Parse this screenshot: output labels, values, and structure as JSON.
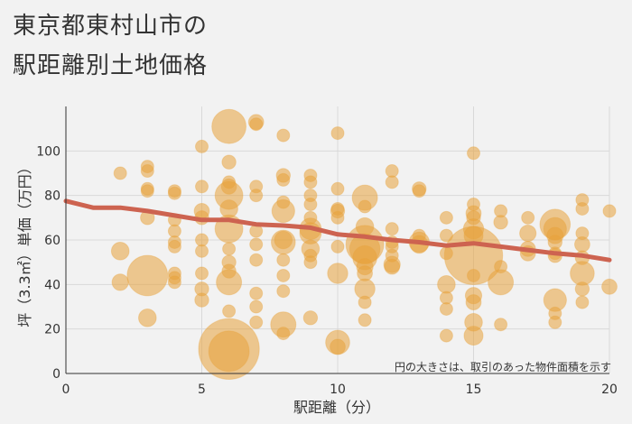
{
  "title": {
    "line1": "東京都東村山市の",
    "line2": "駅距離別土地価格"
  },
  "colors": {
    "background": "#f2f2f2",
    "bubble": "#e8a33c",
    "trend": "#cd6350",
    "grid": "#d9d9d9",
    "axis": "#333333"
  },
  "chart_data": {
    "type": "scatter",
    "xlabel": "駅距離（分）",
    "ylabel": "坪（3.3㎡）単価（万円）",
    "xlim": [
      0,
      20
    ],
    "ylim": [
      0,
      120
    ],
    "xticks": [
      0,
      5,
      10,
      15,
      20
    ],
    "yticks": [
      0,
      20,
      40,
      60,
      80,
      100
    ],
    "note": "円の大きさは、取引のあった物件面積を示す",
    "trend": {
      "x": [
        0,
        1,
        2,
        3,
        4,
        5,
        6,
        7,
        8,
        9,
        10,
        11,
        12,
        13,
        14,
        15,
        16,
        17,
        18,
        19,
        20
      ],
      "y": [
        77.5,
        74.5,
        74.5,
        73,
        71,
        69,
        69,
        67,
        66.5,
        65.5,
        62.5,
        61.5,
        60,
        59,
        57.5,
        58.5,
        57,
        55.5,
        54,
        53,
        51
      ]
    },
    "points": [
      {
        "x": 2,
        "y": 90,
        "s": 1
      },
      {
        "x": 2,
        "y": 55,
        "s": 1.4
      },
      {
        "x": 2,
        "y": 41,
        "s": 1.3
      },
      {
        "x": 3,
        "y": 93,
        "s": 1
      },
      {
        "x": 3,
        "y": 91,
        "s": 1
      },
      {
        "x": 3,
        "y": 83,
        "s": 1
      },
      {
        "x": 3,
        "y": 82,
        "s": 1
      },
      {
        "x": 3,
        "y": 70,
        "s": 1.1
      },
      {
        "x": 3,
        "y": 44,
        "s": 3.2
      },
      {
        "x": 3,
        "y": 25,
        "s": 1.4
      },
      {
        "x": 4,
        "y": 82,
        "s": 1
      },
      {
        "x": 4,
        "y": 81,
        "s": 1
      },
      {
        "x": 4,
        "y": 69,
        "s": 1
      },
      {
        "x": 4,
        "y": 64,
        "s": 1
      },
      {
        "x": 4,
        "y": 59,
        "s": 1
      },
      {
        "x": 4,
        "y": 57,
        "s": 1
      },
      {
        "x": 4,
        "y": 45,
        "s": 1
      },
      {
        "x": 4,
        "y": 43,
        "s": 1
      },
      {
        "x": 4,
        "y": 41,
        "s": 1
      },
      {
        "x": 5,
        "y": 102,
        "s": 1
      },
      {
        "x": 5,
        "y": 84,
        "s": 1
      },
      {
        "x": 5,
        "y": 73,
        "s": 1.2
      },
      {
        "x": 5,
        "y": 70,
        "s": 1.1
      },
      {
        "x": 5,
        "y": 60,
        "s": 1
      },
      {
        "x": 5,
        "y": 55,
        "s": 1
      },
      {
        "x": 5,
        "y": 45,
        "s": 1
      },
      {
        "x": 5,
        "y": 38,
        "s": 1.1
      },
      {
        "x": 5,
        "y": 33,
        "s": 1.1
      },
      {
        "x": 6,
        "y": 111,
        "s": 2.7
      },
      {
        "x": 6,
        "y": 95,
        "s": 1.1
      },
      {
        "x": 6,
        "y": 86,
        "s": 1
      },
      {
        "x": 6,
        "y": 84,
        "s": 1.2
      },
      {
        "x": 6,
        "y": 80,
        "s": 2.2
      },
      {
        "x": 6,
        "y": 74,
        "s": 1.4
      },
      {
        "x": 6,
        "y": 65,
        "s": 2.2
      },
      {
        "x": 6,
        "y": 56,
        "s": 1
      },
      {
        "x": 6,
        "y": 50,
        "s": 1.1
      },
      {
        "x": 6,
        "y": 46,
        "s": 1.1
      },
      {
        "x": 6,
        "y": 41,
        "s": 2
      },
      {
        "x": 6,
        "y": 28,
        "s": 1
      },
      {
        "x": 6,
        "y": 11,
        "s": 4.8
      },
      {
        "x": 6,
        "y": 10,
        "s": 3.2
      },
      {
        "x": 7,
        "y": 113,
        "s": 1.2
      },
      {
        "x": 7,
        "y": 112,
        "s": 1
      },
      {
        "x": 7,
        "y": 84,
        "s": 1
      },
      {
        "x": 7,
        "y": 80,
        "s": 1
      },
      {
        "x": 7,
        "y": 64,
        "s": 1
      },
      {
        "x": 7,
        "y": 58,
        "s": 1
      },
      {
        "x": 7,
        "y": 51,
        "s": 1
      },
      {
        "x": 7,
        "y": 36,
        "s": 1
      },
      {
        "x": 7,
        "y": 30,
        "s": 1
      },
      {
        "x": 7,
        "y": 23,
        "s": 1
      },
      {
        "x": 8,
        "y": 107,
        "s": 1
      },
      {
        "x": 8,
        "y": 89,
        "s": 1.1
      },
      {
        "x": 8,
        "y": 87,
        "s": 1
      },
      {
        "x": 8,
        "y": 77,
        "s": 1
      },
      {
        "x": 8,
        "y": 73,
        "s": 1.8
      },
      {
        "x": 8,
        "y": 60,
        "s": 1.4
      },
      {
        "x": 8,
        "y": 59,
        "s": 1.9
      },
      {
        "x": 8,
        "y": 51,
        "s": 1
      },
      {
        "x": 8,
        "y": 44,
        "s": 1
      },
      {
        "x": 8,
        "y": 37,
        "s": 1
      },
      {
        "x": 8,
        "y": 22,
        "s": 2
      },
      {
        "x": 8,
        "y": 18,
        "s": 1
      },
      {
        "x": 9,
        "y": 89,
        "s": 1
      },
      {
        "x": 9,
        "y": 86,
        "s": 1
      },
      {
        "x": 9,
        "y": 80,
        "s": 1
      },
      {
        "x": 9,
        "y": 76,
        "s": 1
      },
      {
        "x": 9,
        "y": 70,
        "s": 1
      },
      {
        "x": 9,
        "y": 65,
        "s": 1.7
      },
      {
        "x": 9,
        "y": 63,
        "s": 1.7
      },
      {
        "x": 9,
        "y": 56,
        "s": 1.4
      },
      {
        "x": 9,
        "y": 53,
        "s": 1
      },
      {
        "x": 9,
        "y": 50,
        "s": 1
      },
      {
        "x": 9,
        "y": 25,
        "s": 1.1
      },
      {
        "x": 10,
        "y": 108,
        "s": 1
      },
      {
        "x": 10,
        "y": 83,
        "s": 1
      },
      {
        "x": 10,
        "y": 74,
        "s": 1
      },
      {
        "x": 10,
        "y": 73,
        "s": 1.1
      },
      {
        "x": 10,
        "y": 70,
        "s": 1
      },
      {
        "x": 10,
        "y": 57,
        "s": 1
      },
      {
        "x": 10,
        "y": 45,
        "s": 1.6
      },
      {
        "x": 10,
        "y": 14,
        "s": 1.9
      },
      {
        "x": 10,
        "y": 12,
        "s": 1.2
      },
      {
        "x": 11,
        "y": 79,
        "s": 2
      },
      {
        "x": 11,
        "y": 75,
        "s": 1
      },
      {
        "x": 11,
        "y": 66,
        "s": 1.4
      },
      {
        "x": 11,
        "y": 58,
        "s": 3
      },
      {
        "x": 11,
        "y": 56,
        "s": 2.4
      },
      {
        "x": 11,
        "y": 52,
        "s": 1.9
      },
      {
        "x": 11,
        "y": 48,
        "s": 1.3
      },
      {
        "x": 11,
        "y": 45,
        "s": 1.2
      },
      {
        "x": 11,
        "y": 38,
        "s": 1.6
      },
      {
        "x": 11,
        "y": 32,
        "s": 1
      },
      {
        "x": 11,
        "y": 24,
        "s": 1
      },
      {
        "x": 12,
        "y": 91,
        "s": 1
      },
      {
        "x": 12,
        "y": 86,
        "s": 1
      },
      {
        "x": 12,
        "y": 65,
        "s": 1
      },
      {
        "x": 12,
        "y": 59,
        "s": 1
      },
      {
        "x": 12,
        "y": 57,
        "s": 1
      },
      {
        "x": 12,
        "y": 53,
        "s": 1
      },
      {
        "x": 12,
        "y": 49,
        "s": 1.3
      },
      {
        "x": 12,
        "y": 48,
        "s": 1.2
      },
      {
        "x": 13,
        "y": 83,
        "s": 1.1
      },
      {
        "x": 13,
        "y": 82,
        "s": 1
      },
      {
        "x": 13,
        "y": 62,
        "s": 1
      },
      {
        "x": 13,
        "y": 59,
        "s": 1.6
      },
      {
        "x": 13,
        "y": 58,
        "s": 1.4
      },
      {
        "x": 14,
        "y": 70,
        "s": 1
      },
      {
        "x": 14,
        "y": 62,
        "s": 1
      },
      {
        "x": 14,
        "y": 54,
        "s": 1
      },
      {
        "x": 14,
        "y": 40,
        "s": 1.4
      },
      {
        "x": 14,
        "y": 34,
        "s": 1
      },
      {
        "x": 14,
        "y": 29,
        "s": 1
      },
      {
        "x": 14,
        "y": 17,
        "s": 1
      },
      {
        "x": 15,
        "y": 99,
        "s": 1
      },
      {
        "x": 15,
        "y": 76,
        "s": 1
      },
      {
        "x": 15,
        "y": 72,
        "s": 1.2
      },
      {
        "x": 15,
        "y": 70,
        "s": 1.1
      },
      {
        "x": 15,
        "y": 65,
        "s": 1.6
      },
      {
        "x": 15,
        "y": 62,
        "s": 1.5
      },
      {
        "x": 15,
        "y": 53,
        "s": 4.6
      },
      {
        "x": 15,
        "y": 44,
        "s": 1
      },
      {
        "x": 15,
        "y": 35,
        "s": 1.3
      },
      {
        "x": 15,
        "y": 32,
        "s": 1.2
      },
      {
        "x": 15,
        "y": 23,
        "s": 1.4
      },
      {
        "x": 15,
        "y": 17,
        "s": 1.5
      },
      {
        "x": 16,
        "y": 73,
        "s": 1
      },
      {
        "x": 16,
        "y": 68,
        "s": 1.1
      },
      {
        "x": 16,
        "y": 48,
        "s": 1
      },
      {
        "x": 16,
        "y": 41,
        "s": 2
      },
      {
        "x": 16,
        "y": 22,
        "s": 1
      },
      {
        "x": 17,
        "y": 70,
        "s": 1
      },
      {
        "x": 17,
        "y": 63,
        "s": 1.3
      },
      {
        "x": 17,
        "y": 56,
        "s": 1.2
      },
      {
        "x": 17,
        "y": 54,
        "s": 1.2
      },
      {
        "x": 18,
        "y": 67,
        "s": 2.4
      },
      {
        "x": 18,
        "y": 65,
        "s": 1.8
      },
      {
        "x": 18,
        "y": 62,
        "s": 1.3
      },
      {
        "x": 18,
        "y": 59,
        "s": 1.1
      },
      {
        "x": 18,
        "y": 54,
        "s": 1
      },
      {
        "x": 18,
        "y": 53,
        "s": 1.1
      },
      {
        "x": 18,
        "y": 33,
        "s": 1.8
      },
      {
        "x": 18,
        "y": 27,
        "s": 1
      },
      {
        "x": 18,
        "y": 23,
        "s": 1
      },
      {
        "x": 19,
        "y": 78,
        "s": 1
      },
      {
        "x": 19,
        "y": 74,
        "s": 1
      },
      {
        "x": 19,
        "y": 63,
        "s": 1
      },
      {
        "x": 19,
        "y": 58,
        "s": 1.2
      },
      {
        "x": 19,
        "y": 52,
        "s": 1.1
      },
      {
        "x": 19,
        "y": 45,
        "s": 1.9
      },
      {
        "x": 19,
        "y": 38,
        "s": 1.1
      },
      {
        "x": 19,
        "y": 32,
        "s": 1
      },
      {
        "x": 20,
        "y": 73,
        "s": 1
      },
      {
        "x": 20,
        "y": 39,
        "s": 1.2
      }
    ]
  }
}
